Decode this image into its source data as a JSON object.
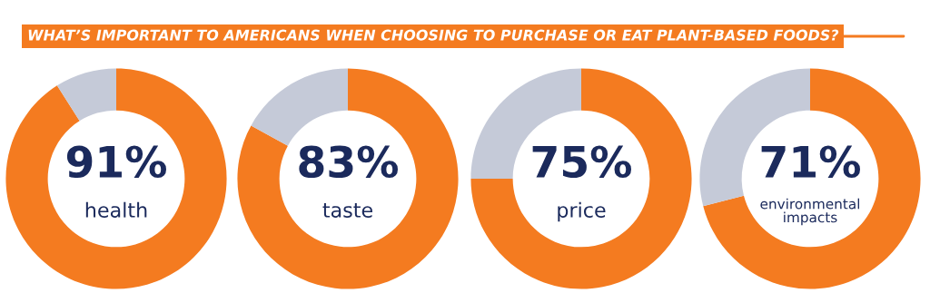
{
  "chart_data": [
    {
      "type": "donut",
      "title": "WHAT’S IMPORTANT TO AMERICANS WHEN CHOOSING TO PURCHASE OR EAT PLANT-BASED FOODS?",
      "categories": [
        "health",
        null
      ],
      "values": [
        91,
        9
      ],
      "colors": [
        "#f47b20",
        "#c5cad8"
      ],
      "value_labels": [
        "91%",
        null
      ]
    },
    {
      "type": "donut",
      "categories": [
        "taste",
        null
      ],
      "values": [
        83,
        17
      ],
      "colors": [
        "#f47b20",
        "#c5cad8"
      ],
      "value_labels": [
        "83%",
        null
      ]
    },
    {
      "type": "donut",
      "categories": [
        "price",
        null
      ],
      "values": [
        75,
        25
      ],
      "colors": [
        "#f47b20",
        "#c5cad8"
      ],
      "value_labels": [
        "75%",
        null
      ]
    },
    {
      "type": "donut",
      "categories": [
        "environmental\nimpacts",
        null
      ],
      "values": [
        71,
        29
      ],
      "colors": [
        "#f47b20",
        "#c5cad8"
      ],
      "value_labels": [
        "71%",
        null
      ]
    }
  ]
}
